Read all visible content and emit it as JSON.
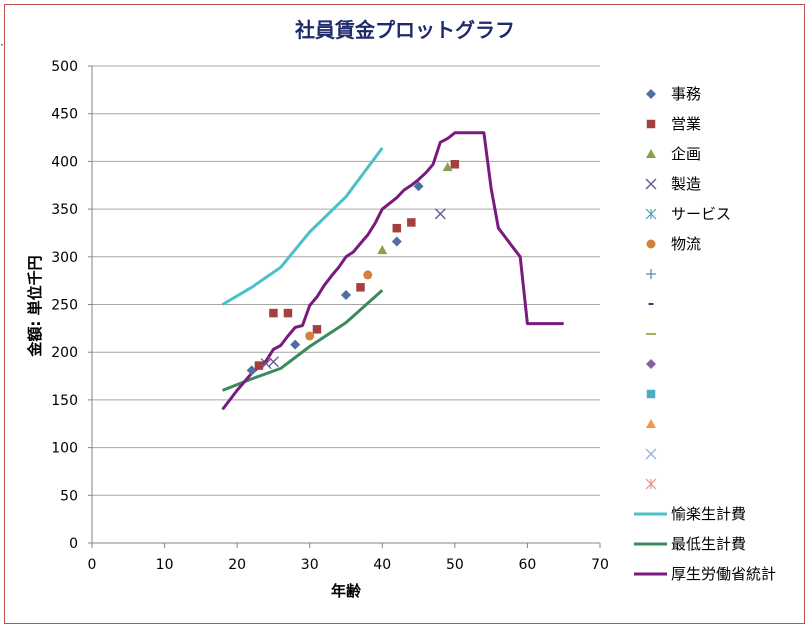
{
  "chart_data": {
    "type": "scatter",
    "title": "社員賃金プロットグラフ",
    "xlabel": "年齢",
    "ylabel": "金額: 単位千円",
    "xlim": [
      0,
      70
    ],
    "ylim": [
      0,
      500
    ],
    "x_ticks": [
      "0",
      "10",
      "20",
      "30",
      "40",
      "50",
      "60",
      "70"
    ],
    "y_ticks": [
      "0",
      "50",
      "100",
      "150",
      "200",
      "250",
      "300",
      "350",
      "400",
      "450",
      "500"
    ],
    "grid": "horizontal",
    "legend_position": "right",
    "series": [
      {
        "name": "事務",
        "kind": "scatter",
        "marker": "diamond",
        "color": "#4f6fa3",
        "points": [
          [
            22,
            181
          ],
          [
            28,
            208
          ],
          [
            35,
            260
          ],
          [
            42,
            316
          ],
          [
            45,
            374
          ]
        ]
      },
      {
        "name": "営業",
        "kind": "scatter",
        "marker": "square",
        "color": "#a5403f",
        "points": [
          [
            23,
            186
          ],
          [
            25,
            241
          ],
          [
            27,
            241
          ],
          [
            31,
            224
          ],
          [
            37,
            268
          ],
          [
            42,
            330
          ],
          [
            44,
            336
          ],
          [
            50,
            397
          ]
        ]
      },
      {
        "name": "企画",
        "kind": "scatter",
        "marker": "triangle",
        "color": "#86a34a",
        "points": [
          [
            40,
            307
          ],
          [
            49,
            394
          ]
        ]
      },
      {
        "name": "製造",
        "kind": "scatter",
        "marker": "x",
        "color": "#6a5590",
        "points": [
          [
            24,
            188
          ],
          [
            25,
            190
          ],
          [
            48,
            345
          ]
        ]
      },
      {
        "name": "サービス",
        "kind": "scatter",
        "marker": "star",
        "color": "#4aa5b8",
        "points": []
      },
      {
        "name": "物流",
        "kind": "scatter",
        "marker": "circle",
        "color": "#d4813c",
        "points": [
          [
            30,
            217
          ],
          [
            38,
            281
          ]
        ]
      },
      {
        "name": "",
        "kind": "scatter",
        "marker": "plus",
        "color": "#4f81bd",
        "points": []
      },
      {
        "name": "",
        "kind": "scatter",
        "marker": "dash",
        "color": "#2b3f6b",
        "points": []
      },
      {
        "name": "",
        "kind": "scatter",
        "marker": "longdash",
        "color": "#9bbb59",
        "points": []
      },
      {
        "name": "",
        "kind": "scatter",
        "marker": "diamond",
        "color": "#8064a2",
        "points": []
      },
      {
        "name": "",
        "kind": "scatter",
        "marker": "square",
        "color": "#4bacc6",
        "points": []
      },
      {
        "name": "",
        "kind": "scatter",
        "marker": "triangle",
        "color": "#f79646",
        "points": []
      },
      {
        "name": "",
        "kind": "scatter",
        "marker": "x",
        "color": "#95b3d7",
        "points": []
      },
      {
        "name": "",
        "kind": "scatter",
        "marker": "star",
        "color": "#e6908f",
        "points": []
      },
      {
        "name": "愉楽生計費",
        "kind": "line",
        "color": "#4bc0c8",
        "points": [
          [
            18,
            250
          ],
          [
            22,
            268
          ],
          [
            26,
            289
          ],
          [
            30,
            326
          ],
          [
            35,
            363
          ],
          [
            40,
            414
          ]
        ]
      },
      {
        "name": "最低生計費",
        "kind": "line",
        "color": "#3a8a5e",
        "points": [
          [
            18,
            160
          ],
          [
            22,
            172
          ],
          [
            26,
            183
          ],
          [
            30,
            206
          ],
          [
            35,
            231
          ],
          [
            40,
            265
          ]
        ]
      },
      {
        "name": "厚生労働省統計",
        "kind": "line",
        "color": "#7b1a7e",
        "points": [
          [
            18,
            140
          ],
          [
            20,
            160
          ],
          [
            22,
            178
          ],
          [
            24,
            191
          ],
          [
            25,
            203
          ],
          [
            26,
            207
          ],
          [
            27,
            217
          ],
          [
            28,
            226
          ],
          [
            29,
            228
          ],
          [
            30,
            249
          ],
          [
            31,
            258
          ],
          [
            32,
            270
          ],
          [
            33,
            280
          ],
          [
            34,
            289
          ],
          [
            35,
            300
          ],
          [
            36,
            305
          ],
          [
            37,
            314
          ],
          [
            38,
            323
          ],
          [
            39,
            335
          ],
          [
            40,
            350
          ],
          [
            41,
            356
          ],
          [
            42,
            362
          ],
          [
            43,
            370
          ],
          [
            44,
            375
          ],
          [
            45,
            381
          ],
          [
            46,
            388
          ],
          [
            47,
            397
          ],
          [
            48,
            420
          ],
          [
            49,
            424
          ],
          [
            50,
            430
          ],
          [
            51,
            430
          ],
          [
            52,
            430
          ],
          [
            53,
            430
          ],
          [
            54,
            430
          ],
          [
            55,
            372
          ],
          [
            56,
            330
          ],
          [
            57,
            320
          ],
          [
            58,
            310
          ],
          [
            59,
            300
          ],
          [
            60,
            230
          ],
          [
            61,
            230
          ],
          [
            62,
            230
          ],
          [
            63,
            230
          ],
          [
            64,
            230
          ],
          [
            65,
            230
          ]
        ]
      }
    ]
  }
}
